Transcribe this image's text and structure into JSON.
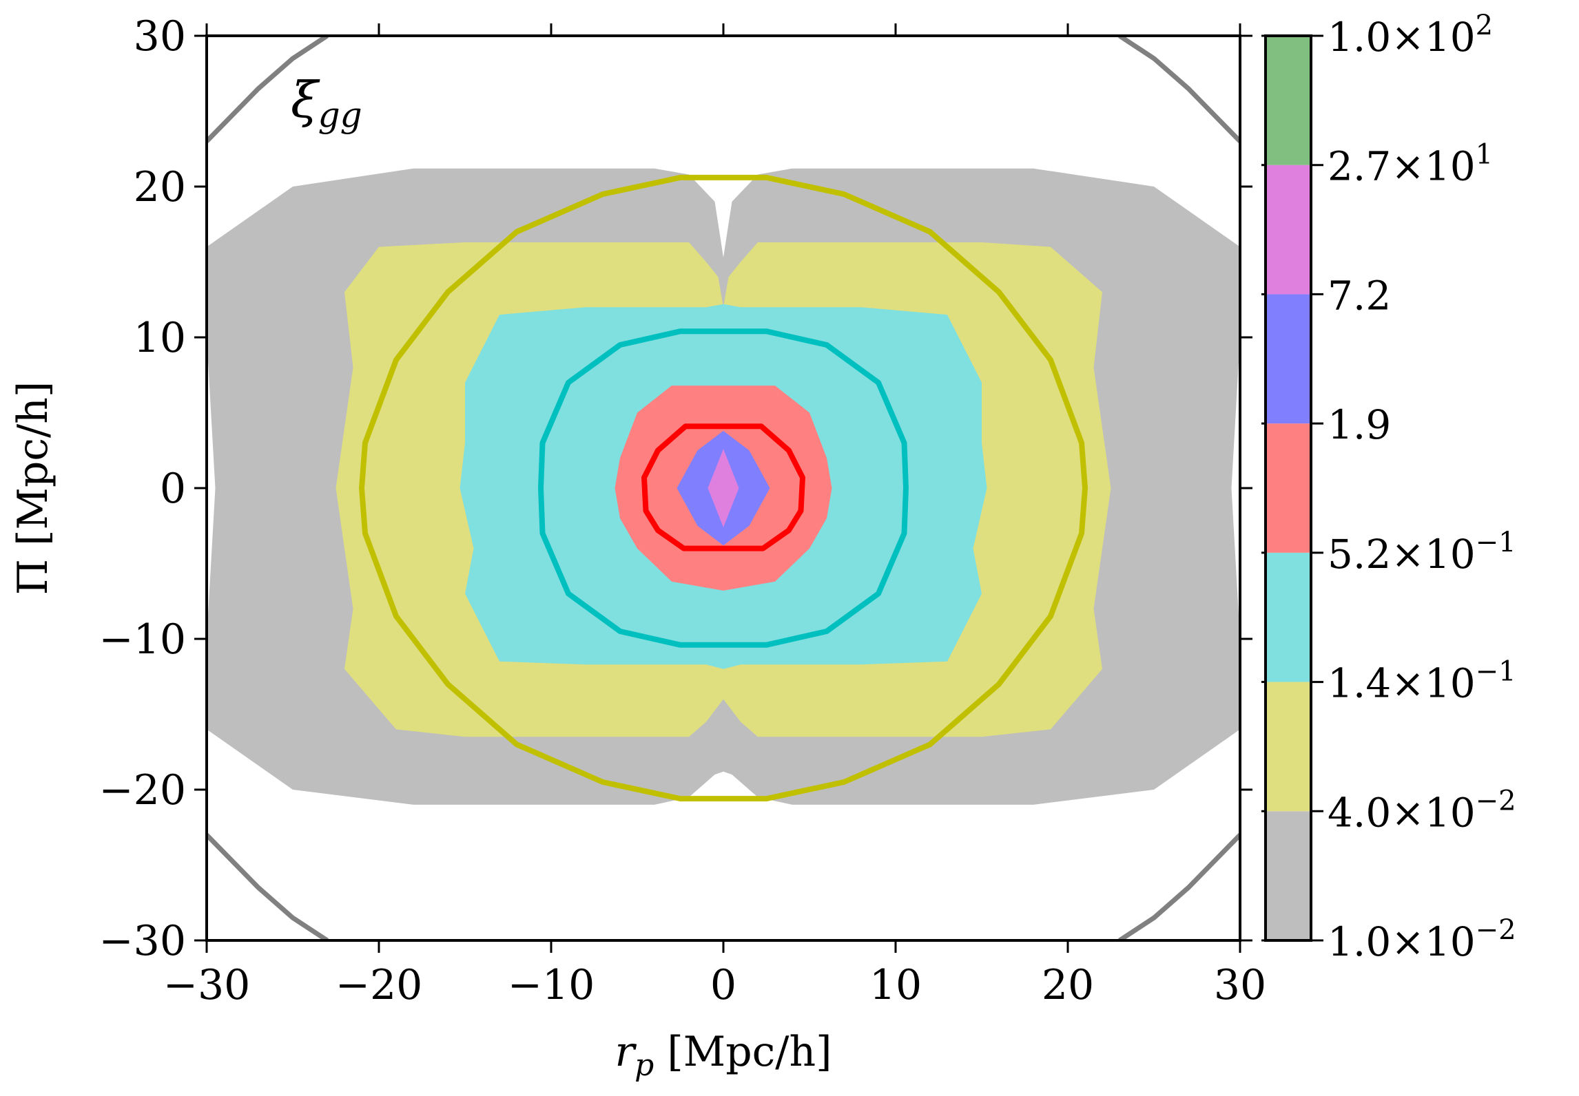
{
  "chart_data": {
    "type": "contour",
    "title": "",
    "panel_label": "ξ",
    "panel_label_sub": "gg",
    "xlabel_var": "r",
    "xlabel_sub": "p",
    "xlabel_unit": " [Mpc/h]",
    "ylabel": "Π [Mpc/h]",
    "xlim": [
      -30,
      30
    ],
    "ylim": [
      -30,
      30
    ],
    "xticks": [
      -30,
      -20,
      -10,
      0,
      10,
      20,
      30
    ],
    "yticks": [
      -30,
      -20,
      -10,
      0,
      10,
      20,
      30
    ],
    "xtick_labels": [
      "−30",
      "−20",
      "−10",
      "0",
      "10",
      "20",
      "30"
    ],
    "ytick_labels": [
      "−30",
      "−20",
      "−10",
      "0",
      "10",
      "20",
      "30"
    ],
    "colorbar": {
      "scale": "log",
      "levels": [
        0.01,
        0.04,
        0.14,
        0.52,
        1.9,
        7.2,
        27,
        100
      ],
      "tick_labels": [
        {
          "m": "1.0",
          "e": "−2"
        },
        {
          "m": "4.0",
          "e": "−2"
        },
        {
          "m": "1.4",
          "e": "−1"
        },
        {
          "m": "5.2",
          "e": "−1"
        },
        {
          "m": "1.9",
          "e": ""
        },
        {
          "m": "7.2",
          "e": ""
        },
        {
          "m": "2.7",
          "e": "1"
        },
        {
          "m": "1.0",
          "e": "2"
        }
      ],
      "colors": [
        "#bebebe",
        "#dfdf80",
        "#80dfdf",
        "#ff8080",
        "#8080ff",
        "#df80df",
        "#80bf80"
      ]
    },
    "filled_contours": [
      {
        "level": 0.01,
        "color": "#bebebe",
        "points": [
          [
            -30,
            16
          ],
          [
            -25,
            20
          ],
          [
            -18,
            21.2
          ],
          [
            -4,
            21.2
          ],
          [
            -2,
            20.8
          ],
          [
            -0.5,
            19
          ],
          [
            0,
            15.3
          ],
          [
            0.5,
            19
          ],
          [
            2,
            20.8
          ],
          [
            4,
            21.2
          ],
          [
            18,
            21.2
          ],
          [
            25,
            20
          ],
          [
            30,
            16
          ],
          [
            30,
            10
          ],
          [
            29.5,
            0
          ],
          [
            30,
            -10
          ],
          [
            30,
            -16
          ],
          [
            25,
            -20
          ],
          [
            18,
            -21
          ],
          [
            4,
            -21
          ],
          [
            2,
            -20.5
          ],
          [
            0.5,
            -19
          ],
          [
            0,
            -18.8
          ],
          [
            -0.5,
            -19
          ],
          [
            -2,
            -20.5
          ],
          [
            -4,
            -21
          ],
          [
            -18,
            -21
          ],
          [
            -25,
            -20
          ],
          [
            -30,
            -16
          ],
          [
            -30,
            -10
          ],
          [
            -29.5,
            0
          ],
          [
            -30,
            10
          ]
        ]
      },
      {
        "level": 0.04,
        "color": "#dfdf80",
        "points": [
          [
            -20,
            16
          ],
          [
            -15,
            16.3
          ],
          [
            -2,
            16.3
          ],
          [
            -1,
            15
          ],
          [
            -0.3,
            14
          ],
          [
            0,
            12
          ],
          [
            0.3,
            14
          ],
          [
            1,
            15
          ],
          [
            2,
            16.3
          ],
          [
            15,
            16.3
          ],
          [
            19,
            16
          ],
          [
            22,
            13
          ],
          [
            21.5,
            8
          ],
          [
            22.5,
            0
          ],
          [
            21.5,
            -8
          ],
          [
            22,
            -12
          ],
          [
            19,
            -16
          ],
          [
            15,
            -16.5
          ],
          [
            2,
            -16.5
          ],
          [
            1,
            -15.5
          ],
          [
            0,
            -14
          ],
          [
            -1,
            -15.5
          ],
          [
            -2,
            -16.5
          ],
          [
            -15,
            -16.5
          ],
          [
            -19,
            -16
          ],
          [
            -22,
            -12
          ],
          [
            -21.5,
            -8
          ],
          [
            -22.5,
            0
          ],
          [
            -21.5,
            8
          ],
          [
            -22,
            13
          ]
        ]
      },
      {
        "level": 0.14,
        "color": "#80dfdf",
        "points": [
          [
            -13,
            11.5
          ],
          [
            -8,
            12
          ],
          [
            -1,
            12
          ],
          [
            0,
            12.2
          ],
          [
            1,
            12
          ],
          [
            8,
            12
          ],
          [
            13,
            11.5
          ],
          [
            15,
            7
          ],
          [
            15,
            3
          ],
          [
            15.3,
            0
          ],
          [
            14.5,
            -4
          ],
          [
            15,
            -7
          ],
          [
            13,
            -11.5
          ],
          [
            8,
            -11.7
          ],
          [
            1,
            -11.7
          ],
          [
            0,
            -12
          ],
          [
            -1,
            -11.7
          ],
          [
            -8,
            -11.7
          ],
          [
            -13,
            -11.5
          ],
          [
            -15,
            -7
          ],
          [
            -14.5,
            -4
          ],
          [
            -15.3,
            0
          ],
          [
            -15,
            3
          ],
          [
            -15,
            7
          ]
        ]
      },
      {
        "level": 0.52,
        "color": "#ff8080",
        "points": [
          [
            -5,
            5
          ],
          [
            -3,
            6.8
          ],
          [
            3,
            6.8
          ],
          [
            5,
            5
          ],
          [
            6,
            2
          ],
          [
            6.3,
            0
          ],
          [
            6,
            -2
          ],
          [
            5,
            -4
          ],
          [
            3,
            -6.2
          ],
          [
            0,
            -6.8
          ],
          [
            -3,
            -6.2
          ],
          [
            -5,
            -4
          ],
          [
            -6,
            -2
          ],
          [
            -6.3,
            0
          ],
          [
            -6,
            2
          ]
        ]
      },
      {
        "level": 1.9,
        "color": "#8080ff",
        "points": [
          [
            -1.5,
            2.5
          ],
          [
            0,
            3.8
          ],
          [
            1.5,
            2.5
          ],
          [
            2.7,
            0
          ],
          [
            1.5,
            -2.5
          ],
          [
            0,
            -3.8
          ],
          [
            -1.5,
            -2.5
          ],
          [
            -2.7,
            0
          ]
        ]
      },
      {
        "level": 7.2,
        "color": "#df80df",
        "points": [
          [
            0,
            2.6
          ],
          [
            0.9,
            0
          ],
          [
            0,
            -2.6
          ],
          [
            -0.9,
            0
          ]
        ]
      }
    ],
    "model_contours": [
      {
        "color": "#c0c000",
        "points": [
          [
            -2.5,
            20.6
          ],
          [
            -7,
            19.5
          ],
          [
            -12,
            17
          ],
          [
            -16,
            13
          ],
          [
            -19,
            8.5
          ],
          [
            -20.8,
            3
          ],
          [
            -21,
            0
          ],
          [
            -20.8,
            -3
          ],
          [
            -19,
            -8.5
          ],
          [
            -16,
            -13
          ],
          [
            -12,
            -17
          ],
          [
            -7,
            -19.5
          ],
          [
            -2.5,
            -20.6
          ],
          [
            2.5,
            -20.6
          ],
          [
            7,
            -19.5
          ],
          [
            12,
            -17
          ],
          [
            16,
            -13
          ],
          [
            19,
            -8.5
          ],
          [
            20.8,
            -3
          ],
          [
            21,
            0
          ],
          [
            20.8,
            3
          ],
          [
            19,
            8.5
          ],
          [
            16,
            13
          ],
          [
            12,
            17
          ],
          [
            7,
            19.5
          ],
          [
            2.5,
            20.6
          ]
        ]
      },
      {
        "color": "#00bfbf",
        "points": [
          [
            -2.5,
            10.4
          ],
          [
            -6,
            9.5
          ],
          [
            -9,
            7
          ],
          [
            -10.5,
            3
          ],
          [
            -10.6,
            0
          ],
          [
            -10.5,
            -3
          ],
          [
            -9,
            -7
          ],
          [
            -6,
            -9.5
          ],
          [
            -2.5,
            -10.4
          ],
          [
            2.5,
            -10.4
          ],
          [
            6,
            -9.5
          ],
          [
            9,
            -7
          ],
          [
            10.5,
            -3
          ],
          [
            10.6,
            0
          ],
          [
            10.5,
            3
          ],
          [
            9,
            7
          ],
          [
            6,
            9.5
          ],
          [
            2.5,
            10.4
          ]
        ]
      },
      {
        "color": "#ff0000",
        "points": [
          [
            -2.2,
            4.1
          ],
          [
            2.2,
            4.1
          ],
          [
            3.8,
            2.5
          ],
          [
            4.6,
            0.7
          ],
          [
            4.5,
            -1.5
          ],
          [
            3.8,
            -2.8
          ],
          [
            2.3,
            -4
          ],
          [
            -2.3,
            -4
          ],
          [
            -3.8,
            -2.8
          ],
          [
            -4.5,
            -1.5
          ],
          [
            -4.6,
            0.7
          ],
          [
            -3.8,
            2.5
          ]
        ]
      }
    ],
    "outer_arcs": {
      "color": "#808080",
      "segments": [
        [
          [
            -30,
            23
          ],
          [
            -27,
            26.5
          ],
          [
            -25,
            28.5
          ],
          [
            -23,
            30
          ]
        ],
        [
          [
            23,
            30
          ],
          [
            25,
            28.5
          ],
          [
            27,
            26.5
          ],
          [
            30,
            23
          ]
        ],
        [
          [
            -30,
            -23
          ],
          [
            -27,
            -26.5
          ],
          [
            -25,
            -28.5
          ],
          [
            -23,
            -30
          ]
        ],
        [
          [
            23,
            -30
          ],
          [
            25,
            -28.5
          ],
          [
            27,
            -26.5
          ],
          [
            30,
            -23
          ]
        ]
      ]
    }
  }
}
